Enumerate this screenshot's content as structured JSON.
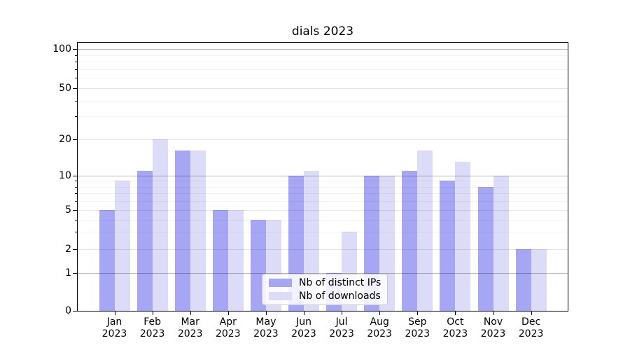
{
  "chart_data": {
    "type": "bar",
    "title": "dials 2023",
    "categories": [
      "Jan",
      "Feb",
      "Mar",
      "Apr",
      "May",
      "Jun",
      "Jul",
      "Aug",
      "Sep",
      "Oct",
      "Nov",
      "Dec"
    ],
    "category_year_line": "2023",
    "series": [
      {
        "name": "Nb of distinct IPs",
        "color": "#a6a6f4",
        "values": [
          5,
          11,
          16,
          5,
          4,
          10,
          1,
          10,
          11,
          9,
          8,
          2
        ]
      },
      {
        "name": "Nb of downloads",
        "color": "#dcdcf9",
        "values": [
          9,
          20,
          16,
          5,
          4,
          11,
          3,
          10,
          16,
          13,
          10,
          2
        ]
      }
    ],
    "y_axis": {
      "ticks": [
        0,
        1,
        2,
        5,
        10,
        20,
        50,
        100
      ],
      "decade_gridlines": [
        1,
        10,
        100
      ],
      "mid_gridlines": [
        2,
        5,
        20,
        50
      ],
      "minor_gridlines": [
        3,
        4,
        6,
        7,
        8,
        9,
        30,
        40,
        60,
        70,
        80,
        90
      ],
      "scale": "log-like"
    },
    "legend": {
      "position": "lower-center"
    },
    "grid": true,
    "colors": {
      "bar_ips": "#a6a6f4",
      "bar_downloads": "#dcdcf9",
      "grid_decade": "rgba(0,0,0,0.28)",
      "grid_mid": "rgba(0,0,0,0.10)",
      "grid_minor": "rgba(0,0,0,0.05)",
      "spine": "#000000",
      "text": "#000000"
    }
  }
}
